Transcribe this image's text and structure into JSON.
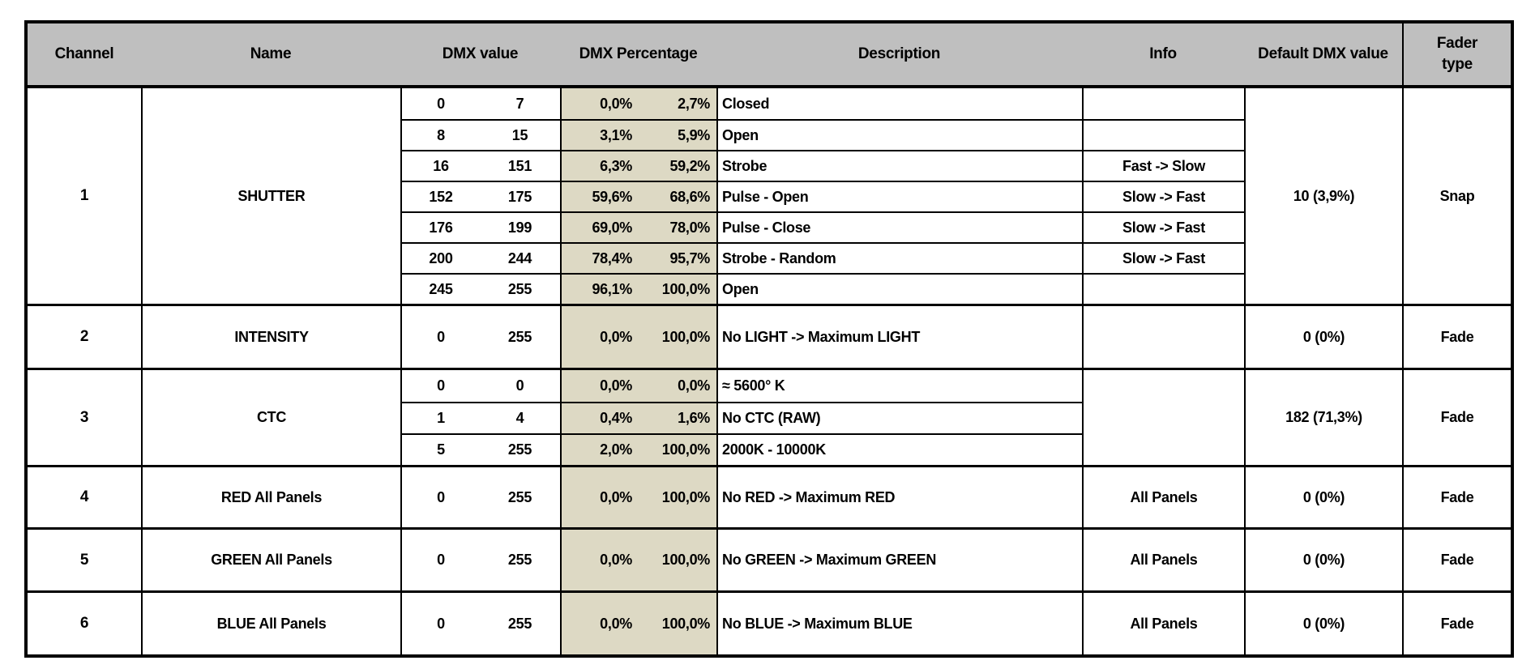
{
  "colors": {
    "header_bg": "#bfbfbf",
    "percentage_bg": "#ddd9c4",
    "border": "#000000"
  },
  "header": {
    "channel": "Channel",
    "name": "Name",
    "dmx_value": "DMX value",
    "dmx_percentage": "DMX Percentage",
    "description": "Description",
    "info": "Info",
    "default_dmx": "Default DMX value",
    "fader_type": "Fader type"
  },
  "channels": [
    {
      "channel": "1",
      "name": "SHUTTER",
      "default": "10 (3,9%)",
      "fader": "Snap",
      "rows": [
        {
          "dmx_min": "0",
          "dmx_max": "7",
          "pct_min": "0,0%",
          "pct_max": "2,7%",
          "description": "Closed",
          "info": ""
        },
        {
          "dmx_min": "8",
          "dmx_max": "15",
          "pct_min": "3,1%",
          "pct_max": "5,9%",
          "description": "Open",
          "info": ""
        },
        {
          "dmx_min": "16",
          "dmx_max": "151",
          "pct_min": "6,3%",
          "pct_max": "59,2%",
          "description": "Strobe",
          "info": "Fast -> Slow"
        },
        {
          "dmx_min": "152",
          "dmx_max": "175",
          "pct_min": "59,6%",
          "pct_max": "68,6%",
          "description": "Pulse - Open",
          "info": "Slow -> Fast"
        },
        {
          "dmx_min": "176",
          "dmx_max": "199",
          "pct_min": "69,0%",
          "pct_max": "78,0%",
          "description": "Pulse - Close",
          "info": "Slow -> Fast"
        },
        {
          "dmx_min": "200",
          "dmx_max": "244",
          "pct_min": "78,4%",
          "pct_max": "95,7%",
          "description": "Strobe - Random",
          "info": "Slow -> Fast"
        },
        {
          "dmx_min": "245",
          "dmx_max": "255",
          "pct_min": "96,1%",
          "pct_max": "100,0%",
          "description": "Open",
          "info": ""
        }
      ]
    },
    {
      "channel": "2",
      "name": "INTENSITY",
      "default": "0 (0%)",
      "fader": "Fade",
      "rows": [
        {
          "dmx_min": "0",
          "dmx_max": "255",
          "pct_min": "0,0%",
          "pct_max": "100,0%",
          "description": "No LIGHT -> Maximum LIGHT",
          "info": ""
        }
      ]
    },
    {
      "channel": "3",
      "name": "CTC",
      "default": "182 (71,3%)",
      "fader": "Fade",
      "merged_info": "",
      "rows": [
        {
          "dmx_min": "0",
          "dmx_max": "0",
          "pct_min": "0,0%",
          "pct_max": "0,0%",
          "description": "≈ 5600° K"
        },
        {
          "dmx_min": "1",
          "dmx_max": "4",
          "pct_min": "0,4%",
          "pct_max": "1,6%",
          "description": "No CTC (RAW)"
        },
        {
          "dmx_min": "5",
          "dmx_max": "255",
          "pct_min": "2,0%",
          "pct_max": "100,0%",
          "description": "2000K - 10000K"
        }
      ]
    },
    {
      "channel": "4",
      "name": "RED All Panels",
      "default": "0 (0%)",
      "fader": "Fade",
      "rows": [
        {
          "dmx_min": "0",
          "dmx_max": "255",
          "pct_min": "0,0%",
          "pct_max": "100,0%",
          "description": "No RED -> Maximum RED",
          "info": "All Panels"
        }
      ]
    },
    {
      "channel": "5",
      "name": "GREEN All Panels",
      "default": "0 (0%)",
      "fader": "Fade",
      "rows": [
        {
          "dmx_min": "0",
          "dmx_max": "255",
          "pct_min": "0,0%",
          "pct_max": "100,0%",
          "description": "No GREEN -> Maximum GREEN",
          "info": "All Panels"
        }
      ]
    },
    {
      "channel": "6",
      "name": "BLUE All Panels",
      "default": "0 (0%)",
      "fader": "Fade",
      "rows": [
        {
          "dmx_min": "0",
          "dmx_max": "255",
          "pct_min": "0,0%",
          "pct_max": "100,0%",
          "description": "No BLUE -> Maximum BLUE",
          "info": "All Panels"
        }
      ]
    }
  ]
}
